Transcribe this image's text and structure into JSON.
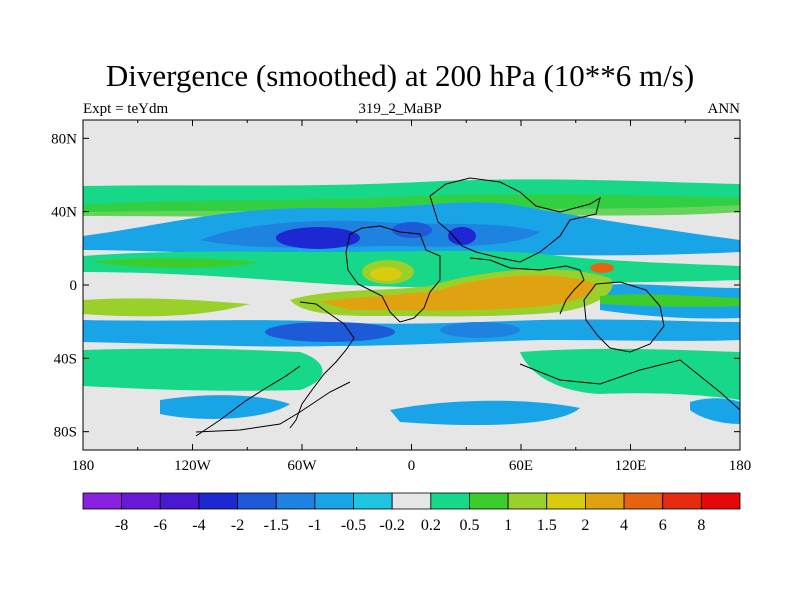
{
  "chart_data": {
    "type": "heatmap",
    "title": "Divergence (smoothed) at 200 hPa (10**6 m/s)",
    "subtitle_left": "Expt = teYdm",
    "subtitle_center": "319_2_MaBP",
    "subtitle_right": "ANN",
    "x_ticks": [
      "180",
      "120W",
      "60W",
      "0",
      "60E",
      "120E",
      "180"
    ],
    "y_ticks": [
      "80N",
      "40N",
      "0",
      "40S",
      "80S"
    ],
    "xlim": [
      -180,
      180
    ],
    "ylim": [
      -90,
      90
    ],
    "colorbar": {
      "labels": [
        "-8",
        "-6",
        "-4",
        "-2",
        "-1.5",
        "-1",
        "-0.5",
        "-0.2",
        "0.2",
        "0.5",
        "1",
        "1.5",
        "2",
        "4",
        "6",
        "8"
      ],
      "colors": [
        "#8a20e0",
        "#6a18d8",
        "#4a18d0",
        "#1e28d2",
        "#1e5ad8",
        "#1e82e0",
        "#1aa4e8",
        "#1ec4e0",
        "#e6e6e6",
        "#16d888",
        "#3ccc2c",
        "#9ad02a",
        "#d8cc10",
        "#e0a210",
        "#e66410",
        "#e62a10",
        "#e60808"
      ]
    }
  }
}
